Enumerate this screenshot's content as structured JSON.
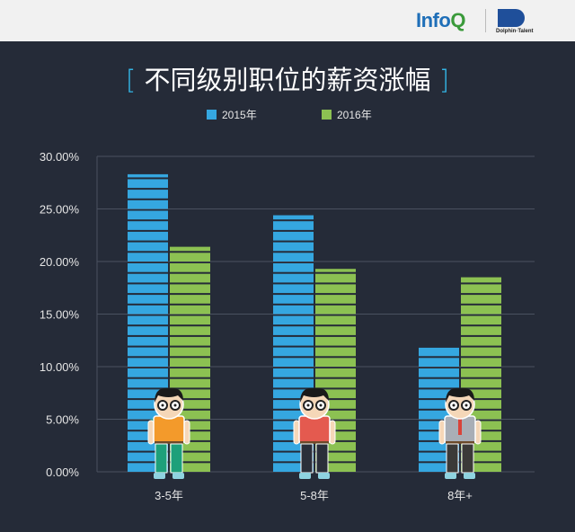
{
  "header": {
    "logo_infoq": "InfoQ",
    "logo_partner": "Dolphin Talent"
  },
  "chart_data": {
    "type": "bar",
    "title": "不同级别职位的薪资涨幅",
    "categories": [
      "3-5年",
      "5-8年",
      "8年+"
    ],
    "series": [
      {
        "name": "2015年",
        "values": [
          28.3,
          24.4,
          11.8
        ],
        "color": "#35a7e0"
      },
      {
        "name": "2016年",
        "values": [
          21.4,
          19.3,
          18.5
        ],
        "color": "#8cc152"
      }
    ],
    "ylim": [
      0,
      30
    ],
    "yticks": [
      "0.00%",
      "5.00%",
      "10.00%",
      "15.00%",
      "20.00%",
      "25.00%",
      "30.00%"
    ],
    "xlabel": "",
    "ylabel": "",
    "grid": true,
    "legend_position": "top"
  }
}
